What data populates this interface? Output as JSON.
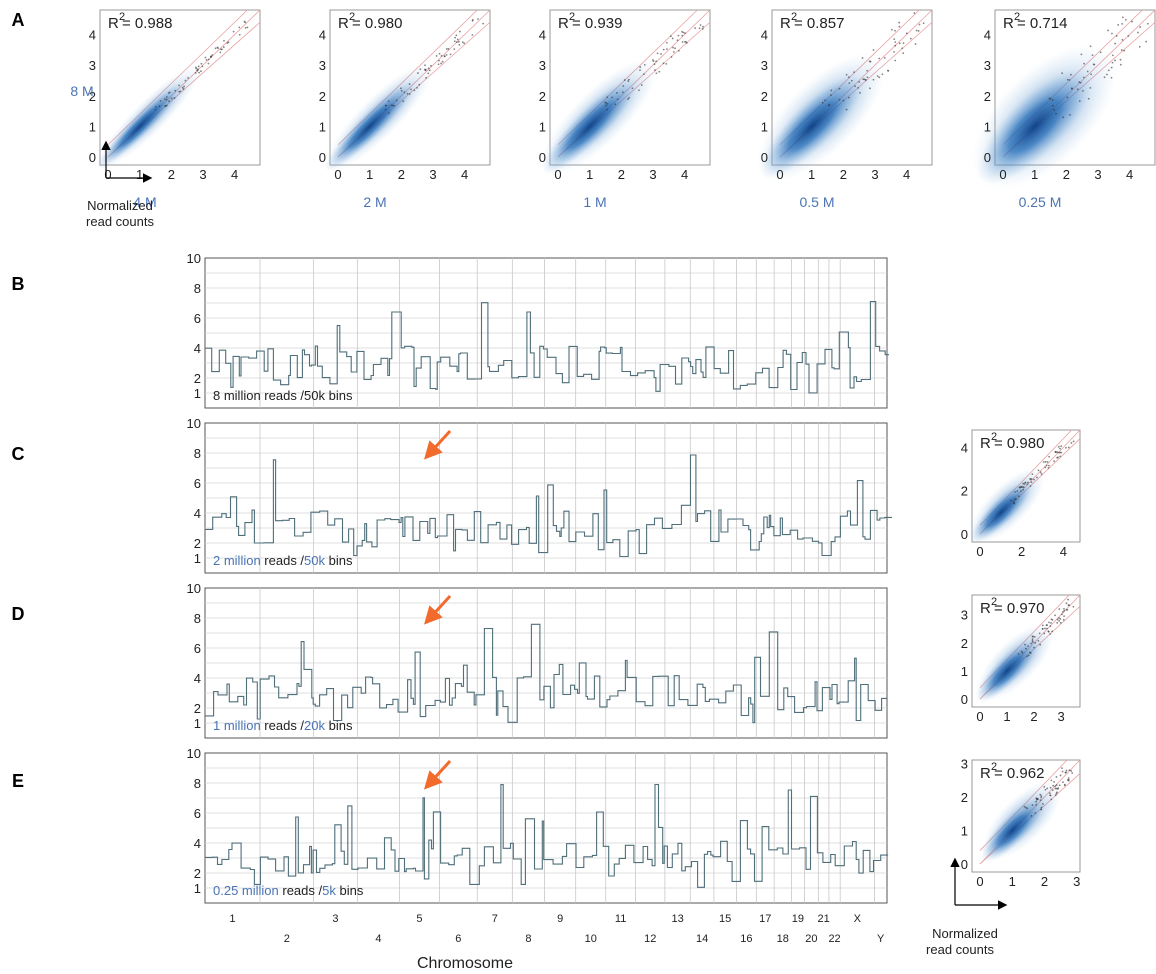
{
  "colors": {
    "accent_blue": "#4a74b4",
    "density": "#1f5fa8",
    "track_line": "#4f6f7a",
    "grid": "#c8c8c8",
    "arrow": "#f26a2c",
    "diag": "#e8a0a0"
  },
  "panel_labels": [
    "A",
    "B",
    "C",
    "D",
    "E"
  ],
  "arrow_icon": "orange-arrow-icon",
  "panel_a": {
    "axis_y_caption": "8 M",
    "axis_note": [
      "Normalized",
      "read counts"
    ],
    "plots": [
      {
        "r2_label": "R",
        "r2_exp": "2",
        "r2_value": "= 0.988",
        "x_caption": "4 M",
        "max": 4.8,
        "x_ticks": [
          "0",
          "1",
          "2",
          "3",
          "4"
        ],
        "y_ticks": [
          "0",
          "1",
          "2",
          "3",
          "4"
        ],
        "spread": 0.12
      },
      {
        "r2_label": "R",
        "r2_exp": "2",
        "r2_value": "= 0.980",
        "x_caption": "2 M",
        "max": 4.8,
        "x_ticks": [
          "0",
          "1",
          "2",
          "3",
          "4"
        ],
        "y_ticks": [
          "0",
          "1",
          "2",
          "3",
          "4"
        ],
        "spread": 0.18
      },
      {
        "r2_label": "R",
        "r2_exp": "2",
        "r2_value": "= 0.939",
        "x_caption": "1 M",
        "max": 4.8,
        "x_ticks": [
          "0",
          "1",
          "2",
          "3",
          "4"
        ],
        "y_ticks": [
          "0",
          "1",
          "2",
          "3",
          "4"
        ],
        "spread": 0.28
      },
      {
        "r2_label": "R",
        "r2_exp": "2",
        "r2_value": "= 0.857",
        "x_caption": "0.5 M",
        "max": 4.8,
        "x_ticks": [
          "0",
          "1",
          "2",
          "3",
          "4"
        ],
        "y_ticks": [
          "0",
          "1",
          "2",
          "3",
          "4"
        ],
        "spread": 0.42
      },
      {
        "r2_label": "R",
        "r2_exp": "2",
        "r2_value": "= 0.714",
        "x_caption": "0.25 M",
        "max": 4.8,
        "x_ticks": [
          "0",
          "1",
          "2",
          "3",
          "4"
        ],
        "y_ticks": [
          "0",
          "1",
          "2",
          "3",
          "4"
        ],
        "spread": 0.6
      }
    ]
  },
  "genome_tracks": {
    "y_ticks": [
      "1",
      "2",
      "4",
      "6",
      "8",
      "10"
    ],
    "y_tick_values": [
      1,
      2,
      4,
      6,
      8,
      10
    ],
    "ylim": [
      0,
      10
    ],
    "chromosomes_top": [
      "1",
      "3",
      "5",
      "7",
      "9",
      "11",
      "13",
      "15",
      "17",
      "19",
      "21",
      "X"
    ],
    "chromosomes_bottom": [
      "2",
      "4",
      "6",
      "8",
      "10",
      "12",
      "14",
      "16",
      "18",
      "20",
      "22",
      "Y"
    ],
    "xlabel": "Chromosome",
    "tracks": [
      {
        "caption_parts": [
          {
            "text": "8 million reads /50k bins",
            "blue": false
          }
        ],
        "seed": 11,
        "arrow": false,
        "scatter": null
      },
      {
        "caption_parts": [
          {
            "text": "2 million",
            "blue": true
          },
          {
            "text": " reads /",
            "blue": false
          },
          {
            "text": "50k",
            "blue": true
          },
          {
            "text": " bins",
            "blue": false
          }
        ],
        "seed": 11,
        "arrow": true,
        "scatter": {
          "r2_label": "R",
          "r2_exp": "2",
          "r2_value": "= 0.980",
          "max": 4.8,
          "x_ticks": [
            "0",
            "2",
            "4"
          ],
          "x_tick_values": [
            0,
            2,
            4
          ],
          "y_ticks": [
            "0",
            "2",
            "4"
          ],
          "y_tick_values": [
            0,
            2,
            4
          ],
          "spread": 0.18
        }
      },
      {
        "caption_parts": [
          {
            "text": "1 million",
            "blue": true
          },
          {
            "text": " reads /",
            "blue": false
          },
          {
            "text": "20k",
            "blue": true
          },
          {
            "text": " bins",
            "blue": false
          }
        ],
        "seed": 11,
        "arrow": true,
        "scatter": {
          "r2_label": "R",
          "r2_exp": "2",
          "r2_value": "= 0.970",
          "max": 3.7,
          "x_ticks": [
            "0",
            "1",
            "2",
            "3"
          ],
          "x_tick_values": [
            0,
            1,
            2,
            3
          ],
          "y_ticks": [
            "0",
            "1",
            "2",
            "3"
          ],
          "y_tick_values": [
            0,
            1,
            2,
            3
          ],
          "spread": 0.2
        }
      },
      {
        "caption_parts": [
          {
            "text": "0.25 million",
            "blue": true
          },
          {
            "text": " reads /",
            "blue": false
          },
          {
            "text": "5k",
            "blue": true
          },
          {
            "text": " bins",
            "blue": false
          }
        ],
        "seed": 29,
        "arrow": true,
        "scatter": {
          "r2_label": "R",
          "r2_exp": "2",
          "r2_value": "= 0.962",
          "max": 3.1,
          "x_ticks": [
            "0",
            "1",
            "2",
            "3"
          ],
          "x_tick_values": [
            0,
            1,
            2,
            3
          ],
          "y_ticks": [
            "0",
            "1",
            "2",
            "3"
          ],
          "y_tick_values": [
            0,
            1,
            2,
            3
          ],
          "spread": 0.22
        }
      }
    ],
    "axis_note": [
      "Normalized",
      "read counts"
    ]
  }
}
